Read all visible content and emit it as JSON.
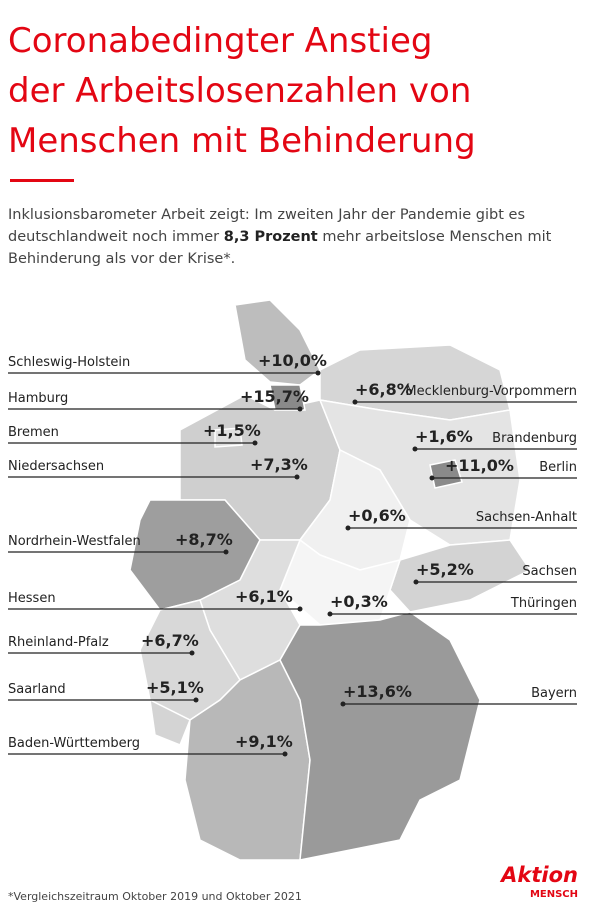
{
  "header": {
    "title": [
      "Coronabedingter Anstieg",
      "der Arbeitslosenzahlen von",
      "Menschen mit Behinderung"
    ],
    "intro": {
      "line1": "Inklusionsbarometer Arbeit zeigt: Im zweiten Jahr der Pandemie gibt es",
      "line2_before": "deutschlandweit noch immer ",
      "line2_bold": "8,3 Prozent",
      "line2_after": " mehr arbeitslose Menschen mit",
      "line3": "Behinderung als vor der Krise*."
    }
  },
  "states": [
    {
      "name": "Schleswig-Holstein",
      "value": "+10,0%"
    },
    {
      "name": "Hamburg",
      "value": "+15,7%"
    },
    {
      "name": "Bremen",
      "value": "+1,5%"
    },
    {
      "name": "Niedersachsen",
      "value": "+7,3%"
    },
    {
      "name": "Nordrhein-Westfalen",
      "value": "+8,7%"
    },
    {
      "name": "Hessen",
      "value": "+6,1%"
    },
    {
      "name": "Rheinland-Pfalz",
      "value": "+6,7%"
    },
    {
      "name": "Saarland",
      "value": "+5,1%"
    },
    {
      "name": "Baden-Württemberg",
      "value": "+9,1%"
    },
    {
      "name": "Mecklenburg-Vorpommern",
      "value": "+6,8%"
    },
    {
      "name": "Brandenburg",
      "value": "+1,6%"
    },
    {
      "name": "Berlin",
      "value": "+11,0%"
    },
    {
      "name": "Sachsen-Anhalt",
      "value": "+0,6%"
    },
    {
      "name": "Sachsen",
      "value": "+5,2%"
    },
    {
      "name": "Thüringen",
      "value": "+0,3%"
    },
    {
      "name": "Bayern",
      "value": "+13,6%"
    }
  ],
  "footnote": "*Vergleichszeitraum Oktober 2019 und Oktober 2021",
  "logo": {
    "top": "Aktion",
    "bottom": "MENSCH"
  }
}
